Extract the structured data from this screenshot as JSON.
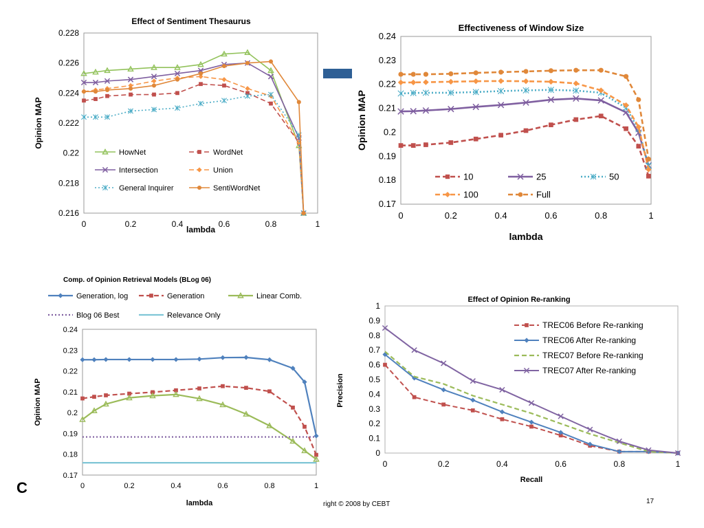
{
  "footer": {
    "copyright": "right © 2008 by CEBT",
    "page_number": "17",
    "slide_letter": "C"
  },
  "colors": {
    "accent_bar": "#2e5f95"
  },
  "chart_data": [
    {
      "id": "c1",
      "type": "line",
      "title": "Effect of Sentiment Thesaurus",
      "xlabel": "lambda",
      "ylabel": "Opinion MAP",
      "xlim": [
        0,
        1
      ],
      "ylim": [
        0.216,
        0.228
      ],
      "xticks": [
        0,
        0.2,
        0.4,
        0.6,
        0.8,
        1
      ],
      "xtick_labels": [
        "0",
        "0.2",
        "0.4",
        "0.6",
        "0.8",
        "1"
      ],
      "yticks": [
        0.216,
        0.218,
        0.22,
        0.222,
        0.224,
        0.226,
        0.228
      ],
      "ytick_labels": [
        "0.216",
        "0.218",
        "0.22",
        "0.222",
        "0.224",
        "0.226",
        "0.228"
      ],
      "grid": false,
      "legend": "bottom-inside",
      "x": [
        0,
        0.05,
        0.1,
        0.2,
        0.3,
        0.4,
        0.5,
        0.6,
        0.7,
        0.8,
        0.92,
        0.94
      ],
      "series": [
        {
          "name": "HowNet",
          "color": "#92c25b",
          "dash": "solid",
          "marker": "triangle",
          "values": [
            0.2253,
            0.2254,
            0.2255,
            0.2256,
            0.2257,
            0.2257,
            0.2259,
            0.2266,
            0.2267,
            0.2255,
            0.2205,
            0.216
          ]
        },
        {
          "name": "WordNet",
          "color": "#c0504d",
          "dash": "dash",
          "marker": "square",
          "values": [
            0.2235,
            0.2236,
            0.2238,
            0.2239,
            0.2239,
            0.224,
            0.2246,
            0.2245,
            0.224,
            0.2233,
            0.2207,
            0.216
          ]
        },
        {
          "name": "Intersection",
          "color": "#7f5fa0",
          "dash": "solid",
          "marker": "x",
          "values": [
            0.2247,
            0.2247,
            0.2248,
            0.2249,
            0.2251,
            0.2253,
            0.2255,
            0.2259,
            0.226,
            0.2251,
            0.221,
            0.216
          ]
        },
        {
          "name": "Union",
          "color": "#f79646",
          "dash": "dash",
          "marker": "diamond",
          "values": [
            0.2241,
            0.2242,
            0.2243,
            0.2245,
            0.2248,
            0.225,
            0.2251,
            0.2249,
            0.2243,
            0.2238,
            0.2207,
            0.216
          ]
        },
        {
          "name": "General Inquirer",
          "color": "#4bacc6",
          "dash": "dot",
          "marker": "star",
          "values": [
            0.2224,
            0.2224,
            0.2224,
            0.2228,
            0.2229,
            0.223,
            0.2233,
            0.2235,
            0.2238,
            0.2239,
            0.2212,
            0.216
          ]
        },
        {
          "name": "SentiWordNet",
          "color": "#e0883a",
          "dash": "solid",
          "marker": "circle",
          "values": [
            0.2241,
            0.2241,
            0.2242,
            0.2243,
            0.2245,
            0.2249,
            0.2253,
            0.2258,
            0.226,
            0.2261,
            0.2234,
            0.216
          ]
        }
      ]
    },
    {
      "id": "c2",
      "type": "line",
      "title": "Effectiveness of Window Size",
      "xlabel": "lambda",
      "ylabel": "Opinion MAP",
      "xlim": [
        0,
        1
      ],
      "ylim": [
        0.17,
        0.24
      ],
      "xticks": [
        0,
        0.2,
        0.4,
        0.6,
        0.8,
        1
      ],
      "xtick_labels": [
        "0",
        "0.2",
        "0.4",
        "0.6",
        "0.8",
        "1"
      ],
      "yticks": [
        0.17,
        0.18,
        0.19,
        0.2,
        0.21,
        0.22,
        0.23,
        0.24
      ],
      "ytick_labels": [
        "0.17",
        "0.18",
        "0.19",
        "0.2",
        "0.21",
        "0.22",
        "0.23",
        "0.24"
      ],
      "grid": false,
      "legend": "bottom-inside",
      "x": [
        0,
        0.05,
        0.1,
        0.2,
        0.3,
        0.4,
        0.5,
        0.6,
        0.7,
        0.8,
        0.9,
        0.95,
        0.99
      ],
      "series": [
        {
          "name": "10",
          "color": "#c0504d",
          "dash": "dash",
          "marker": "square",
          "values": [
            0.1945,
            0.1945,
            0.1948,
            0.1957,
            0.1972,
            0.1988,
            0.2007,
            0.2031,
            0.2053,
            0.2068,
            0.2015,
            0.1942,
            0.1817
          ]
        },
        {
          "name": "25",
          "color": "#7f5fa0",
          "dash": "solid",
          "marker": "x",
          "values": [
            0.2087,
            0.2088,
            0.2091,
            0.2097,
            0.2106,
            0.2114,
            0.2124,
            0.2136,
            0.2141,
            0.2133,
            0.2083,
            0.1998,
            0.1862
          ]
        },
        {
          "name": "50",
          "color": "#4bacc6",
          "dash": "dot",
          "marker": "star",
          "values": [
            0.2162,
            0.2164,
            0.2165,
            0.2165,
            0.2168,
            0.2172,
            0.2175,
            0.2177,
            0.2174,
            0.2165,
            0.2102,
            0.2013,
            0.186
          ]
        },
        {
          "name": "100",
          "color": "#f79646",
          "dash": "dash",
          "marker": "diamond",
          "values": [
            0.2208,
            0.2208,
            0.2209,
            0.2211,
            0.2213,
            0.2214,
            0.2213,
            0.2211,
            0.2204,
            0.2175,
            0.2113,
            0.2022,
            0.1845
          ]
        },
        {
          "name": "Full",
          "color": "#e0883a",
          "dash": "dash",
          "marker": "circle",
          "values": [
            0.2242,
            0.2242,
            0.2242,
            0.2244,
            0.2248,
            0.2251,
            0.2254,
            0.2257,
            0.2259,
            0.2259,
            0.2233,
            0.2136,
            0.1888
          ]
        }
      ]
    },
    {
      "id": "c3",
      "type": "line",
      "title": "Comp. of Opinion Retrieval Models (BLog 06)",
      "xlabel": "lambda",
      "ylabel": "Opinion MAP",
      "xlim": [
        0,
        1
      ],
      "ylim": [
        0.17,
        0.24
      ],
      "xticks": [
        0,
        0.2,
        0.4,
        0.6,
        0.8,
        1
      ],
      "xtick_labels": [
        "0",
        "0.2",
        "0.4",
        "0.6",
        "0.8",
        "1"
      ],
      "yticks": [
        0.17,
        0.18,
        0.19,
        0.2,
        0.21,
        0.22,
        0.23,
        0.24
      ],
      "ytick_labels": [
        "0.17",
        "0.18",
        "0.19",
        "0.2",
        "0.21",
        "0.22",
        "0.23",
        "0.24"
      ],
      "grid": false,
      "legend": "top-outside",
      "x": [
        0,
        0.05,
        0.1,
        0.2,
        0.3,
        0.4,
        0.5,
        0.6,
        0.7,
        0.8,
        0.9,
        0.95,
        1
      ],
      "series": [
        {
          "name": "Generation, log",
          "color": "#4f81bd",
          "dash": "solid",
          "marker": "diamond",
          "values": [
            0.2254,
            0.2254,
            0.2255,
            0.2255,
            0.2255,
            0.2255,
            0.2257,
            0.2264,
            0.2265,
            0.2254,
            0.2213,
            0.2147,
            0.1888
          ]
        },
        {
          "name": "Generation",
          "color": "#c0504d",
          "dash": "dash",
          "marker": "square",
          "values": [
            0.2068,
            0.2076,
            0.2083,
            0.2091,
            0.2098,
            0.2107,
            0.2116,
            0.2127,
            0.2119,
            0.2102,
            0.2024,
            0.1932,
            0.1797
          ]
        },
        {
          "name": "Linear Comb.",
          "color": "#9bbb59",
          "dash": "solid",
          "marker": "triangle",
          "values": [
            0.1967,
            0.2009,
            0.2041,
            0.2071,
            0.2081,
            0.2087,
            0.2067,
            0.2038,
            0.1993,
            0.1937,
            0.1863,
            0.1817,
            0.1776
          ]
        },
        {
          "name": "Blog 06 Best",
          "color": "#7f5fa0",
          "dash": "dot",
          "marker": "none",
          "values": [
            0.1883,
            0.1883,
            0.1883,
            0.1883,
            0.1883,
            0.1883,
            0.1883,
            0.1883,
            0.1883,
            0.1883,
            0.1883,
            0.1883,
            0.1883
          ]
        },
        {
          "name": "Relevance Only",
          "color": "#7fc6d6",
          "dash": "solid",
          "marker": "none",
          "width": 2.2,
          "values": [
            0.1759,
            0.1759,
            0.1759,
            0.1759,
            0.1759,
            0.1759,
            0.1759,
            0.1759,
            0.1759,
            0.1759,
            0.1759,
            0.1759,
            0.1759
          ]
        }
      ]
    },
    {
      "id": "c4",
      "type": "line",
      "title": "Effect of Opinion Re-ranking",
      "xlabel": "Recall",
      "ylabel": "Precision",
      "xlim": [
        0,
        1
      ],
      "ylim": [
        0,
        1
      ],
      "xticks": [
        0,
        0.2,
        0.4,
        0.6,
        0.8,
        1
      ],
      "xtick_labels": [
        "0",
        "0.2",
        "0.4",
        "0.6",
        "0.8",
        "1"
      ],
      "yticks": [
        0,
        0.1,
        0.2,
        0.3,
        0.4,
        0.5,
        0.6,
        0.7,
        0.8,
        0.9,
        1
      ],
      "ytick_labels": [
        "0",
        "0.1",
        "0.2",
        "0.3",
        "0.4",
        "0.5",
        "0.6",
        "0.7",
        "0.8",
        "0.9",
        "1"
      ],
      "grid": false,
      "legend": "top-right-inside",
      "x": [
        0,
        0.1,
        0.2,
        0.3,
        0.4,
        0.5,
        0.6,
        0.7,
        0.8,
        0.9,
        1
      ],
      "series": [
        {
          "name": "TREC06 Before Re-ranking",
          "color": "#c0504d",
          "dash": "dash",
          "marker": "square",
          "values": [
            0.6,
            0.38,
            0.33,
            0.29,
            0.23,
            0.18,
            0.12,
            0.05,
            0.01,
            0.01,
            0.0
          ]
        },
        {
          "name": "TREC06 After Re-ranking",
          "color": "#4f81bd",
          "dash": "solid",
          "marker": "diamond",
          "values": [
            0.67,
            0.51,
            0.43,
            0.36,
            0.28,
            0.21,
            0.14,
            0.06,
            0.01,
            0.01,
            0.0
          ]
        },
        {
          "name": "TREC07 Before Re-ranking",
          "color": "#9bbb59",
          "dash": "dash",
          "marker": "none",
          "width": 2.2,
          "values": [
            0.69,
            0.52,
            0.47,
            0.39,
            0.33,
            0.27,
            0.2,
            0.13,
            0.07,
            0.01,
            0.0
          ]
        },
        {
          "name": "TREC07 After Re-ranking",
          "color": "#8064a2",
          "dash": "solid",
          "marker": "x",
          "values": [
            0.85,
            0.7,
            0.61,
            0.49,
            0.43,
            0.34,
            0.25,
            0.16,
            0.08,
            0.02,
            0.0
          ]
        }
      ]
    }
  ]
}
